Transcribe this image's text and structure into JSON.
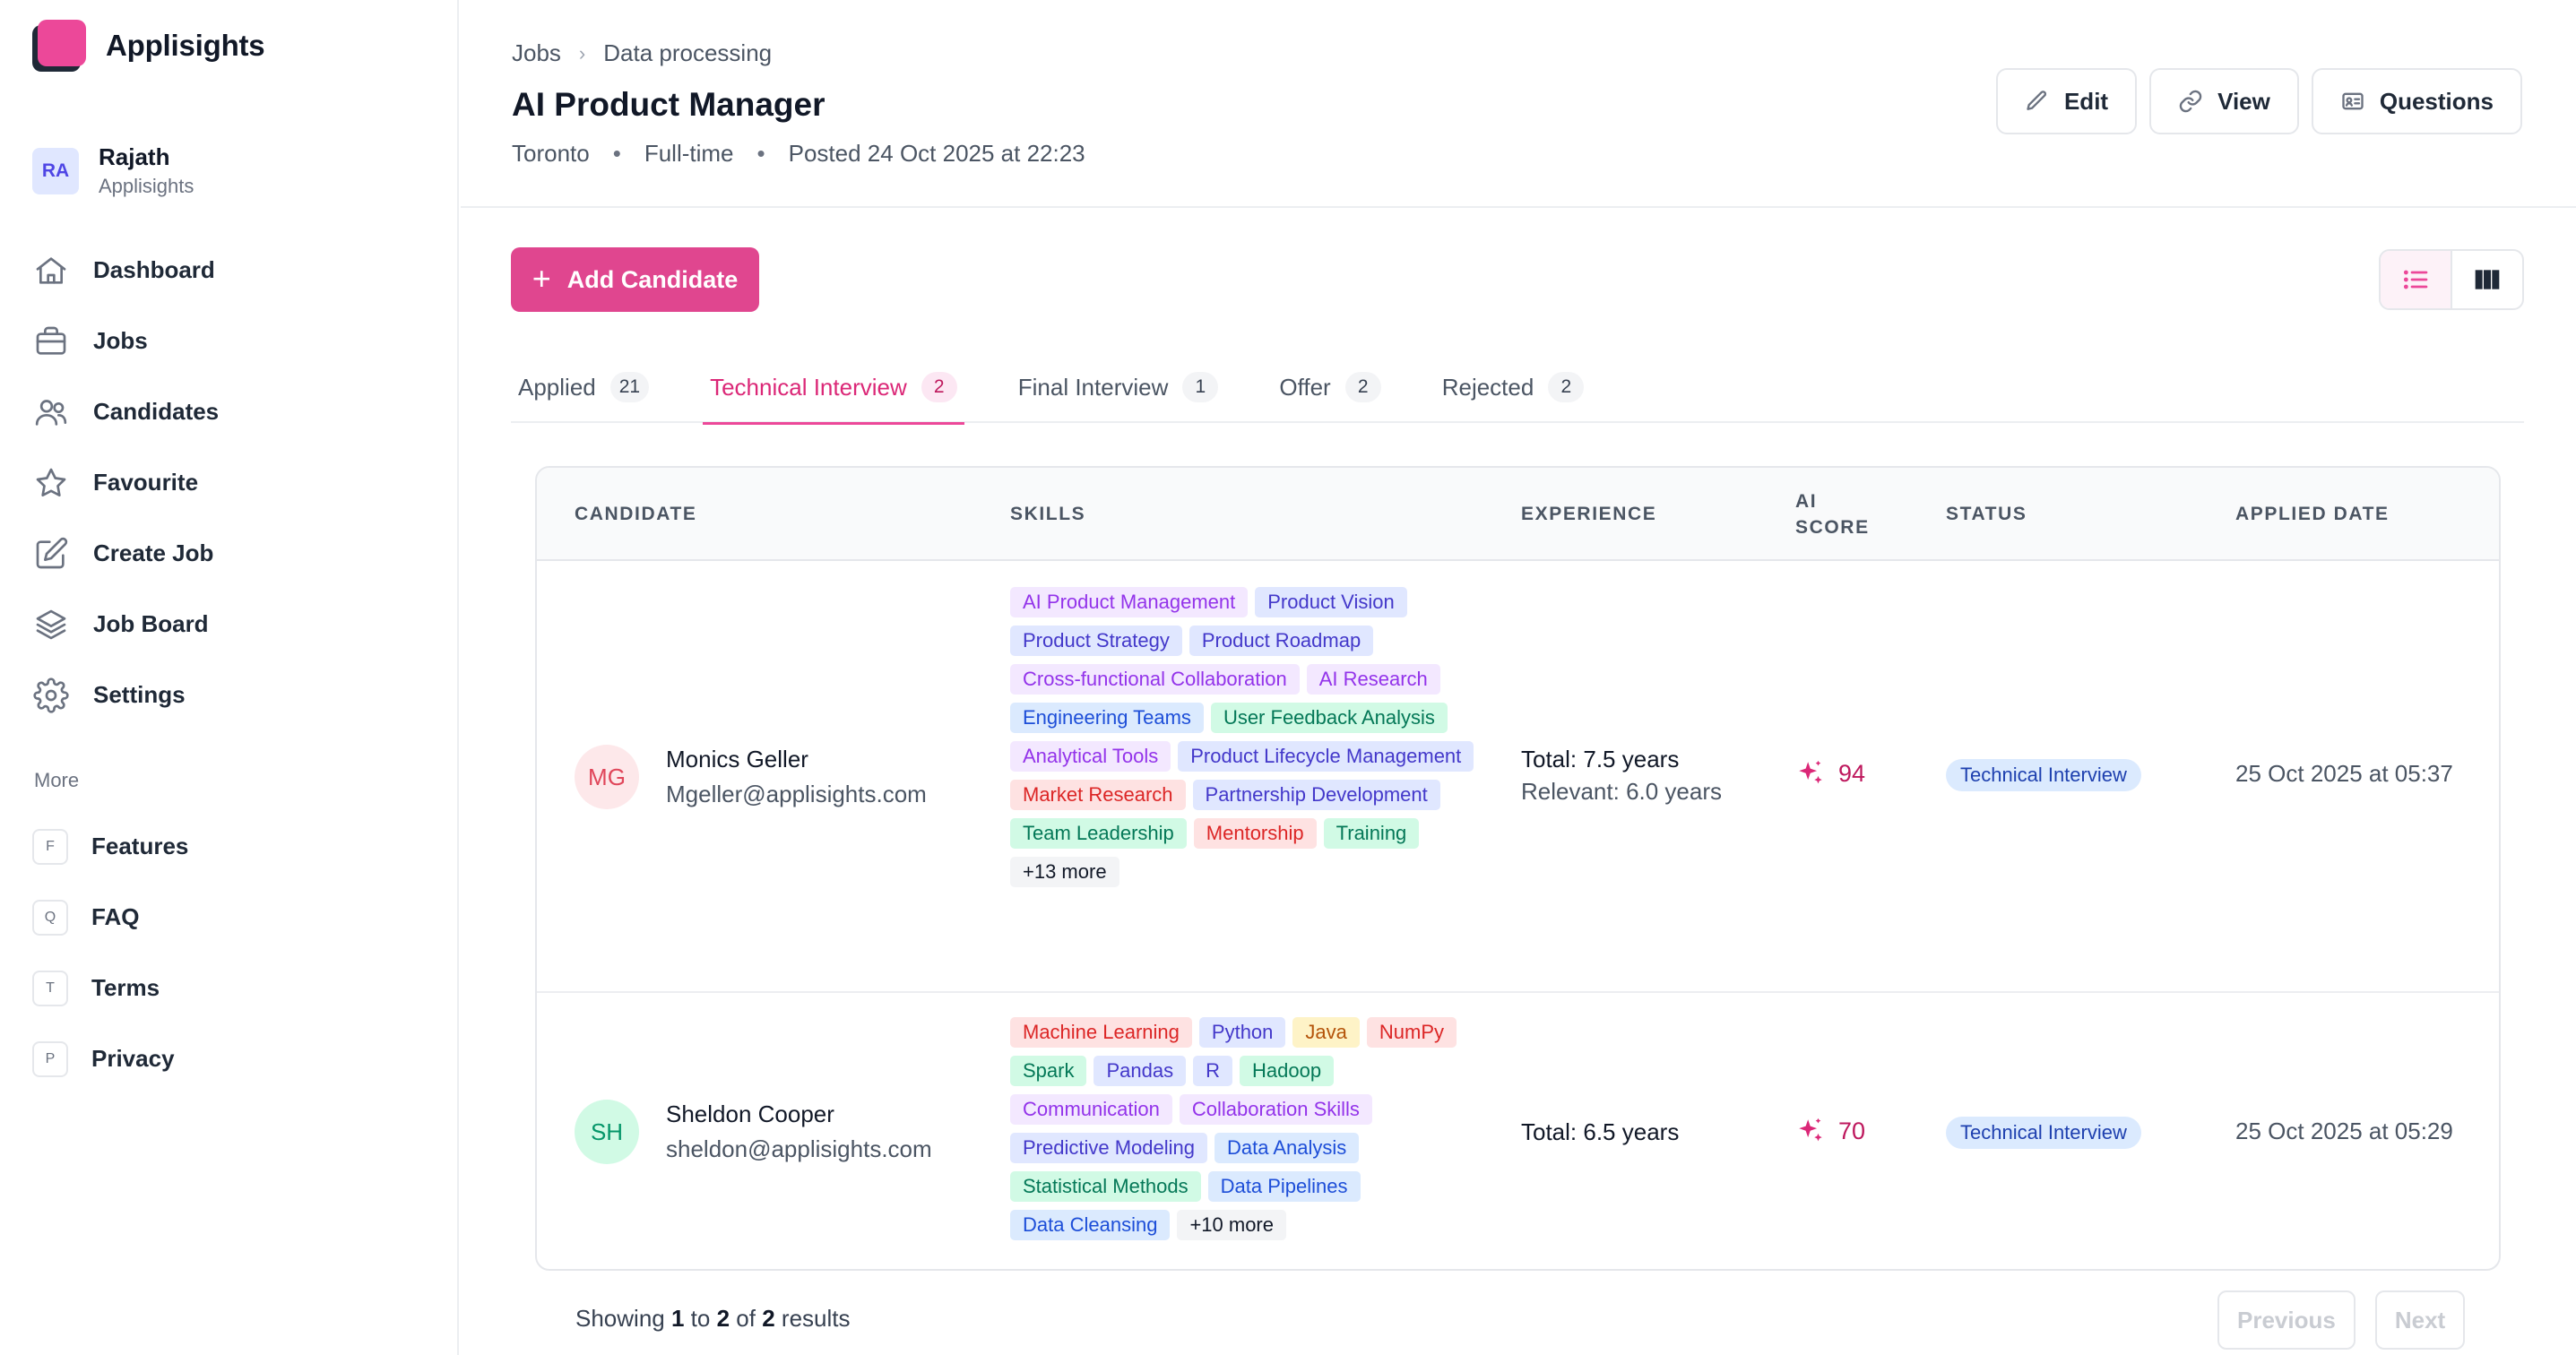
{
  "brand": {
    "name": "Applisights"
  },
  "user": {
    "initials": "RA",
    "name": "Rajath",
    "org": "Applisights"
  },
  "nav": [
    {
      "label": "Dashboard",
      "icon": "home-icon"
    },
    {
      "label": "Jobs",
      "icon": "briefcase-icon"
    },
    {
      "label": "Candidates",
      "icon": "users-icon"
    },
    {
      "label": "Favourite",
      "icon": "star-icon"
    },
    {
      "label": "Create Job",
      "icon": "edit-icon"
    },
    {
      "label": "Job Board",
      "icon": "layers-icon"
    },
    {
      "label": "Settings",
      "icon": "gear-icon"
    }
  ],
  "more": {
    "title": "More",
    "items": [
      {
        "letter": "F",
        "label": "Features"
      },
      {
        "letter": "Q",
        "label": "FAQ"
      },
      {
        "letter": "T",
        "label": "Terms"
      },
      {
        "letter": "P",
        "label": "Privacy"
      }
    ]
  },
  "header": {
    "breadcrumb": [
      "Jobs",
      "Data processing"
    ],
    "title": "AI Product Manager",
    "meta": [
      "Toronto",
      "Full-time",
      "Posted 24 Oct 2025 at 22:23"
    ],
    "buttons": {
      "edit": "Edit",
      "view": "View",
      "questions": "Questions"
    }
  },
  "toolbar": {
    "add_label": "Add Candidate"
  },
  "tabs": [
    {
      "label": "Applied",
      "count": "21",
      "active": false
    },
    {
      "label": "Technical Interview",
      "count": "2",
      "active": true
    },
    {
      "label": "Final Interview",
      "count": "1",
      "active": false
    },
    {
      "label": "Offer",
      "count": "2",
      "active": false
    },
    {
      "label": "Rejected",
      "count": "2",
      "active": false
    }
  ],
  "table": {
    "headers": {
      "candidate": "CANDIDATE",
      "skills": "SKILLS",
      "experience": "EXPERIENCE",
      "ai1": "AI",
      "ai2": "SCORE",
      "status": "STATUS",
      "applied": "APPLIED DATE"
    },
    "rows": [
      {
        "initials": "MG",
        "name": "Monics Geller",
        "email": "Mgeller@applisights.com",
        "total": "Total: 7.5 years",
        "relevant": "Relevant: 6.0 years",
        "score": "94",
        "status": "Technical Interview",
        "date": "25 Oct 2025 at 05:37",
        "skills": [
          "AI Product Management",
          "Product Vision",
          "Product Strategy",
          "Product Roadmap",
          "Cross-functional Collaboration",
          "AI Research",
          "Engineering Teams",
          "User Feedback Analysis",
          "Analytical Tools",
          "Product Lifecycle Management",
          "Market Research",
          "Partnership Development",
          "Team Leadership",
          "Mentorship",
          "Training",
          "+13 more"
        ]
      },
      {
        "initials": "SH",
        "name": "Sheldon Cooper",
        "email": "sheldon@applisights.com",
        "total": "Total: 6.5 years",
        "relevant": "",
        "score": "70",
        "status": "Technical Interview",
        "date": "25 Oct 2025 at 05:29",
        "skills": [
          "Machine Learning",
          "Python",
          "Java",
          "NumPy",
          "Spark",
          "Pandas",
          "R",
          "Hadoop",
          "Communication",
          "Collaboration Skills",
          "Predictive Modeling",
          "Data Analysis",
          "Statistical Methods",
          "Data Pipelines",
          "Data Cleansing",
          "+10 more"
        ]
      }
    ]
  },
  "pagination": {
    "showing": "Showing",
    "from": "1",
    "to_word": "to",
    "to": "2",
    "of_word": "of",
    "total": "2",
    "results_word": "results",
    "previous": "Previous",
    "next": "Next"
  },
  "colors": {
    "accent": "#ec4899",
    "primary_button": "#e0468f",
    "status_bg": "#dbeafe"
  }
}
